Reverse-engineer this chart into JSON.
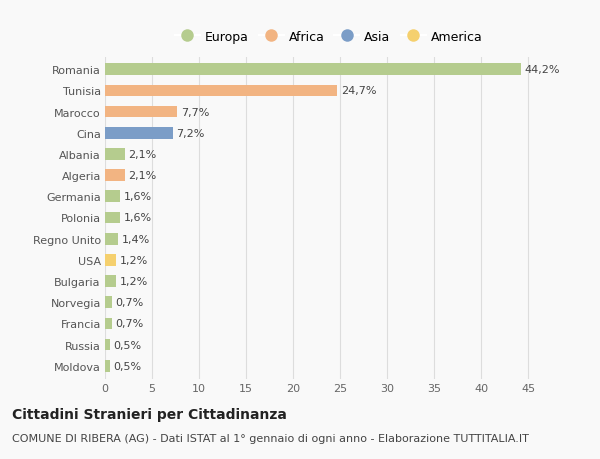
{
  "countries": [
    "Romania",
    "Tunisia",
    "Marocco",
    "Cina",
    "Albania",
    "Algeria",
    "Germania",
    "Polonia",
    "Regno Unito",
    "USA",
    "Bulgaria",
    "Norvegia",
    "Francia",
    "Russia",
    "Moldova"
  ],
  "values": [
    44.2,
    24.7,
    7.7,
    7.2,
    2.1,
    2.1,
    1.6,
    1.6,
    1.4,
    1.2,
    1.2,
    0.7,
    0.7,
    0.5,
    0.5
  ],
  "labels": [
    "44,2%",
    "24,7%",
    "7,7%",
    "7,2%",
    "2,1%",
    "2,1%",
    "1,6%",
    "1,6%",
    "1,4%",
    "1,2%",
    "1,2%",
    "0,7%",
    "0,7%",
    "0,5%",
    "0,5%"
  ],
  "categories": [
    "Europa",
    "Africa",
    "Africa",
    "Asia",
    "Europa",
    "Africa",
    "Europa",
    "Europa",
    "Europa",
    "America",
    "Europa",
    "Europa",
    "Europa",
    "Europa",
    "Europa"
  ],
  "colors": {
    "Europa": "#b5cc8e",
    "Africa": "#f2b482",
    "Asia": "#7b9dc7",
    "America": "#f5d06e"
  },
  "legend_order": [
    "Europa",
    "Africa",
    "Asia",
    "America"
  ],
  "title": "Cittadini Stranieri per Cittadinanza",
  "subtitle": "COMUNE DI RIBERA (AG) - Dati ISTAT al 1° gennaio di ogni anno - Elaborazione TUTTITALIA.IT",
  "xlabel_ticks": [
    0,
    5,
    10,
    15,
    20,
    25,
    30,
    35,
    40,
    45
  ],
  "xlim": [
    0,
    47.5
  ],
  "background_color": "#f9f9f9",
  "grid_color": "#dddddd",
  "bar_height": 0.55,
  "title_fontsize": 10,
  "subtitle_fontsize": 8,
  "tick_fontsize": 8,
  "label_fontsize": 8,
  "legend_fontsize": 9
}
